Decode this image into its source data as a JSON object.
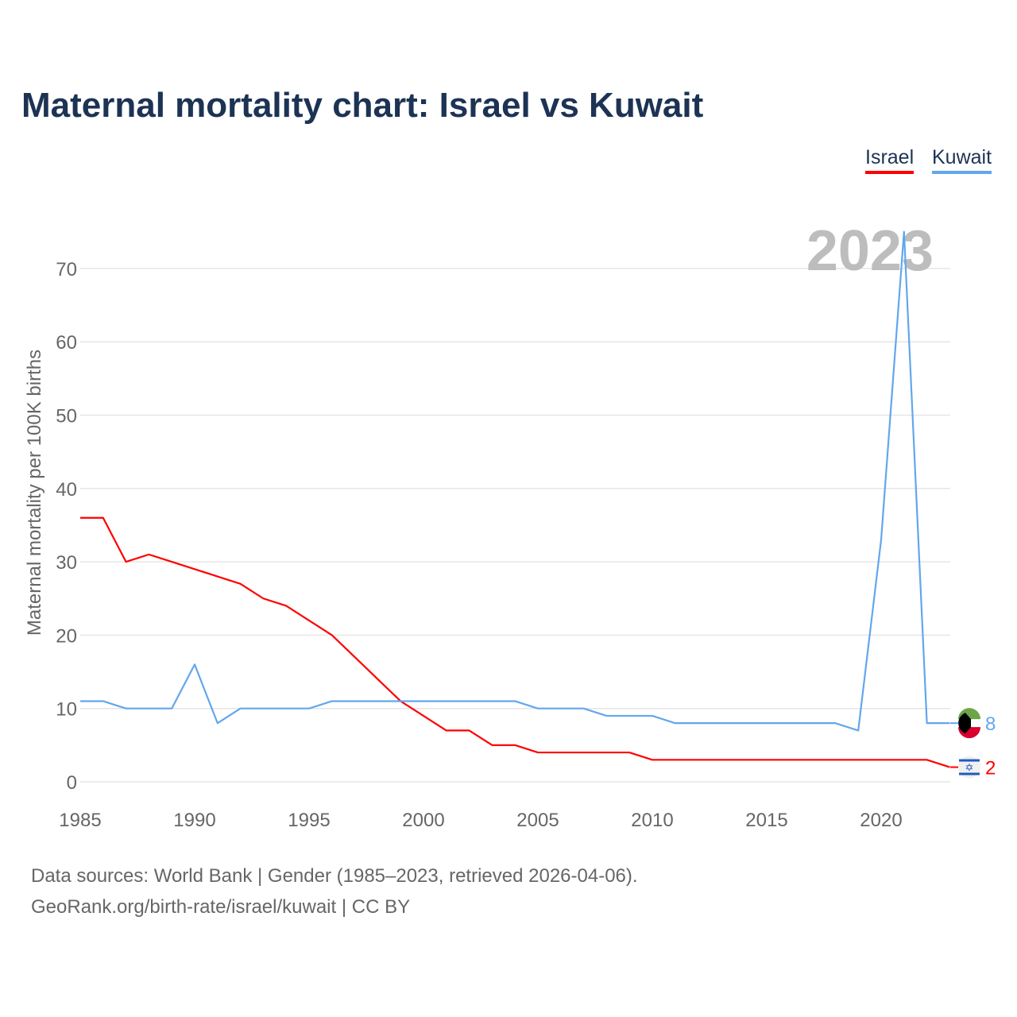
{
  "chart_data": {
    "type": "line",
    "title": "Maternal mortality chart: Israel vs Kuwait",
    "xlabel": "",
    "ylabel": "Maternal mortality per 100K births",
    "xlim": [
      1985,
      2023
    ],
    "ylim": [
      0,
      75
    ],
    "x_ticks": [
      "1985",
      "1990",
      "1995",
      "2000",
      "2005",
      "2010",
      "2015",
      "2020"
    ],
    "y_ticks": [
      "0",
      "10",
      "20",
      "30",
      "40",
      "50",
      "60",
      "70"
    ],
    "grid": true,
    "legend_placement": "top-right",
    "year_label": "2023",
    "x": [
      1985,
      1986,
      1987,
      1988,
      1989,
      1990,
      1991,
      1992,
      1993,
      1994,
      1995,
      1996,
      1997,
      1998,
      1999,
      2000,
      2001,
      2002,
      2003,
      2004,
      2005,
      2006,
      2007,
      2008,
      2009,
      2010,
      2011,
      2012,
      2013,
      2014,
      2015,
      2016,
      2017,
      2018,
      2019,
      2020,
      2021,
      2022,
      2023
    ],
    "series": [
      {
        "name": "Israel",
        "color": "#ff0000",
        "end_label": "2",
        "values": [
          36,
          36,
          30,
          31,
          30,
          29,
          28,
          27,
          25,
          24,
          22,
          20,
          17,
          14,
          11,
          9,
          7,
          7,
          5,
          5,
          4,
          4,
          4,
          4,
          4,
          3,
          3,
          3,
          3,
          3,
          3,
          3,
          3,
          3,
          3,
          3,
          3,
          3,
          2
        ]
      },
      {
        "name": "Kuwait",
        "color": "#62a7ec",
        "end_label": "8",
        "values": [
          11,
          11,
          10,
          10,
          10,
          16,
          8,
          10,
          10,
          10,
          10,
          11,
          11,
          11,
          11,
          11,
          11,
          11,
          11,
          11,
          10,
          10,
          10,
          9,
          9,
          9,
          8,
          8,
          8,
          8,
          8,
          8,
          8,
          8,
          7,
          33,
          75,
          8,
          8
        ]
      }
    ]
  },
  "source": {
    "line1": "Data sources: World Bank | Gender (1985–2023, retrieved 2026-04-06).",
    "line2": "GeoRank.org/birth-rate/israel/kuwait | CC BY"
  }
}
